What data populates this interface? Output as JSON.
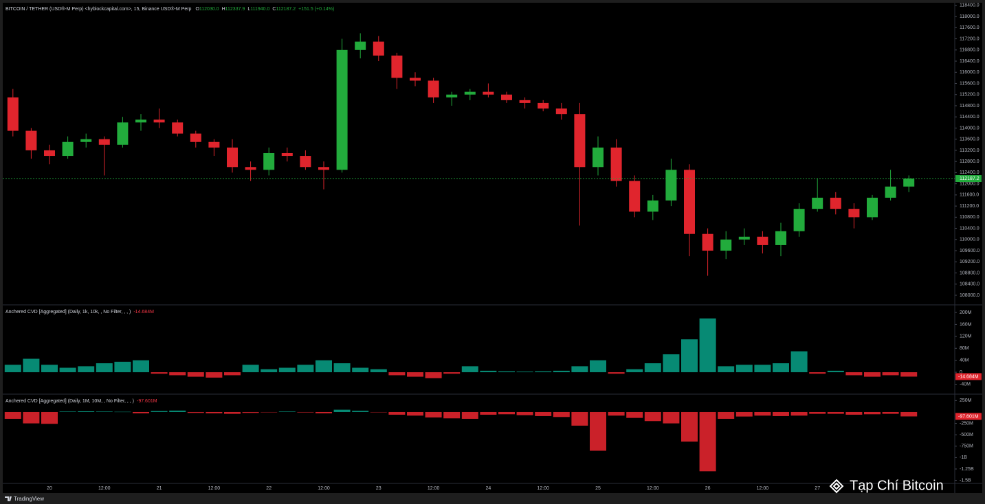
{
  "header": {
    "symbol": "BITCOIN / TETHER (USD®-M Perp) <hyblockcapital.com>, 15, Binance USD®-M Perp",
    "ohlc": [
      {
        "label": "O",
        "value": "112030.0"
      },
      {
        "label": "H",
        "value": "112337.9"
      },
      {
        "label": "L",
        "value": "111940.0"
      },
      {
        "label": "C",
        "value": "112187.2"
      }
    ],
    "change": "+151.5 (+0.14%)"
  },
  "chart_data": [
    {
      "type": "candlestick",
      "categories": [
        null,
        null,
        "20",
        null,
        null,
        "12:00",
        null,
        null,
        "21",
        null,
        null,
        "12:00",
        null,
        null,
        "22",
        null,
        null,
        "12:00",
        null,
        null,
        "23",
        null,
        null,
        "12:00",
        null,
        null,
        "24",
        null,
        null,
        "12:00",
        null,
        null,
        "25",
        null,
        null,
        "12:00",
        null,
        null,
        "26",
        null,
        null,
        "12:00",
        null,
        null,
        "27",
        null,
        null,
        null,
        null,
        null
      ],
      "open": [
        115100,
        113900,
        113200,
        113000,
        113500,
        113600,
        113400,
        114200,
        114300,
        114200,
        113800,
        113500,
        113300,
        112600,
        112500,
        113100,
        113000,
        112600,
        112500,
        116800,
        117100,
        116600,
        115800,
        115700,
        115100,
        115200,
        115300,
        115200,
        115000,
        114900,
        114700,
        114500,
        112600,
        113300,
        112100,
        111000,
        111400,
        112500,
        110200,
        109600,
        110000,
        110100,
        109800,
        110300,
        111100,
        111500,
        111100,
        110800,
        111500,
        111900
      ],
      "high": [
        115400,
        114000,
        113400,
        113700,
        113800,
        113700,
        114400,
        114500,
        114700,
        114300,
        113900,
        113600,
        113600,
        112800,
        113300,
        113300,
        113200,
        112800,
        117200,
        117400,
        117300,
        116700,
        116000,
        115800,
        115300,
        115400,
        115600,
        115300,
        115100,
        115000,
        114900,
        114900,
        113700,
        113600,
        112300,
        111600,
        112900,
        112700,
        110400,
        110300,
        110400,
        110300,
        110600,
        111300,
        112200,
        111700,
        111300,
        111600,
        112500,
        112300
      ],
      "low": [
        113700,
        112900,
        112700,
        112900,
        113300,
        112300,
        113300,
        113900,
        114000,
        113700,
        113300,
        113000,
        112400,
        112100,
        112300,
        112800,
        112500,
        111800,
        112400,
        116500,
        116400,
        115400,
        115500,
        114900,
        114800,
        115000,
        115100,
        114900,
        114700,
        114600,
        114300,
        110500,
        112300,
        111900,
        110800,
        110700,
        111200,
        109400,
        108700,
        109300,
        109800,
        109500,
        109400,
        110100,
        111000,
        110900,
        110400,
        110700,
        111400,
        111700
      ],
      "close": [
        113900,
        113200,
        113000,
        113500,
        113600,
        113400,
        114200,
        114300,
        114200,
        113800,
        113500,
        113300,
        112600,
        112500,
        113100,
        113000,
        112600,
        112500,
        116800,
        117100,
        116600,
        115800,
        115700,
        115100,
        115200,
        115300,
        115200,
        115000,
        114900,
        114700,
        114500,
        112600,
        113300,
        112100,
        111000,
        111400,
        112500,
        110200,
        109600,
        110000,
        110100,
        109800,
        110300,
        111100,
        111500,
        111100,
        110800,
        111500,
        111900,
        112187.2
      ],
      "up_color": "#22ab3c",
      "down_color": "#e0252d",
      "ylim": [
        107680,
        118470
      ],
      "yticks": [
        {
          "value": 108000,
          "label": "108000.0"
        },
        {
          "value": 108400,
          "label": "108400.0"
        },
        {
          "value": 108800,
          "label": "108800.0"
        },
        {
          "value": 109200,
          "label": "109200.0"
        },
        {
          "value": 109600,
          "label": "109600.0"
        },
        {
          "value": 110000,
          "label": "110000.0"
        },
        {
          "value": 110400,
          "label": "110400.0"
        },
        {
          "value": 110800,
          "label": "110800.0"
        },
        {
          "value": 111200,
          "label": "111200.0"
        },
        {
          "value": 111600,
          "label": "111600.0"
        },
        {
          "value": 112000,
          "label": "112000.0"
        },
        {
          "value": 112400,
          "label": "112400.0"
        },
        {
          "value": 112800,
          "label": "112800.0"
        },
        {
          "value": 113200,
          "label": "113200.0"
        },
        {
          "value": 113600,
          "label": "113600.0"
        },
        {
          "value": 114000,
          "label": "114000.0"
        },
        {
          "value": 114400,
          "label": "114400.0"
        },
        {
          "value": 114800,
          "label": "114800.0"
        },
        {
          "value": 115200,
          "label": "115200.0"
        },
        {
          "value": 115600,
          "label": "115600.0"
        },
        {
          "value": 116000,
          "label": "116000.0"
        },
        {
          "value": 116400,
          "label": "116400.0"
        },
        {
          "value": 116800,
          "label": "116800.0"
        },
        {
          "value": 117200,
          "label": "117200.0"
        },
        {
          "value": 117600,
          "label": "117600.0"
        },
        {
          "value": 118000,
          "label": "118000.0"
        },
        {
          "value": 118400,
          "label": "118400.0"
        }
      ],
      "last_price": 112187.2
    },
    {
      "type": "bar",
      "title": "Anchered CVD [Aggregated] (Daily, 1k, 10k, , No Filter, , , )",
      "values": [
        25,
        45,
        25,
        15,
        20,
        30,
        35,
        40,
        -5,
        -10,
        -15,
        -18,
        -10,
        25,
        10,
        15,
        25,
        40,
        30,
        15,
        10,
        -10,
        -15,
        -20,
        -5,
        20,
        5,
        3,
        2,
        3,
        5,
        20,
        40,
        -5,
        10,
        30,
        60,
        110,
        180,
        20,
        25,
        25,
        30,
        70,
        -5,
        5,
        -10,
        -15,
        -10,
        -14.684
      ],
      "last_value": -14.684,
      "last_value_label": "-14.684M",
      "up_color": "#089981",
      "down_color": "#e0252d",
      "ylim": [
        -71,
        223
      ],
      "yticks": [
        {
          "value": 200,
          "label": "200M"
        },
        {
          "value": 160,
          "label": "160M"
        },
        {
          "value": 120,
          "label": "120M"
        },
        {
          "value": 80,
          "label": "80M"
        },
        {
          "value": 40,
          "label": "40M"
        },
        0,
        {
          "value": -40,
          "label": "-40M"
        }
      ]
    },
    {
      "type": "bar",
      "title": "Anchered CVD [Aggregated] (Daily, 1M, 10M, , No Filter, , , )",
      "values": [
        -150,
        -250,
        -260,
        10,
        15,
        10,
        5,
        -30,
        20,
        30,
        -20,
        -30,
        -40,
        -20,
        -5,
        10,
        -10,
        -30,
        50,
        25,
        -5,
        -60,
        -80,
        -120,
        -140,
        -150,
        -60,
        -50,
        -70,
        -90,
        -110,
        -300,
        -850,
        -80,
        -130,
        -200,
        -250,
        -650,
        -1300,
        -150,
        -100,
        -80,
        -90,
        -80,
        -40,
        -40,
        -60,
        -50,
        -40,
        -97.601
      ],
      "last_value": -97.601,
      "last_value_label": "-97.601M",
      "up_color": "#089981",
      "down_color": "#e0252d",
      "ylim": [
        -1551,
        376
      ],
      "yticks": [
        {
          "value": 250,
          "label": "250M"
        },
        {
          "value": -250,
          "label": "-250M"
        },
        {
          "value": -500,
          "label": "-500M"
        },
        {
          "value": -750,
          "label": "-750M"
        },
        {
          "value": -1000,
          "label": "-1B"
        },
        {
          "value": -1250,
          "label": "-1.25B"
        },
        {
          "value": -1500,
          "label": "-1.5B"
        }
      ]
    }
  ],
  "footer": {
    "brand": "TradingView"
  },
  "watermark": "Tạp Chí Bitcoin"
}
